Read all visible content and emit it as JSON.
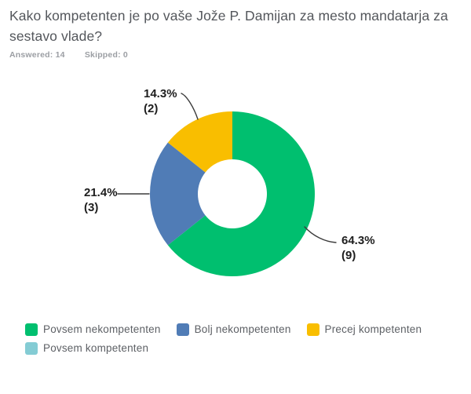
{
  "header": {
    "title": "Kako kompetenten je po vaše Jože P. Damijan za mesto mandatarja za sestavo vlade?",
    "answered_label": "Answered:",
    "answered_value": "14",
    "skipped_label": "Skipped:",
    "skipped_value": "0"
  },
  "chart_data": {
    "type": "pie",
    "subtype": "donut",
    "title": "Kako kompetenten je po vaše Jože P. Damijan za mesto mandatarja za sestavo vlade?",
    "categories": [
      "Povsem nekompetenten",
      "Bolj nekompetenten",
      "Precej kompetenten",
      "Povsem kompetenten"
    ],
    "values_pct": [
      64.3,
      21.4,
      14.3,
      0
    ],
    "counts": [
      9,
      3,
      2,
      0
    ],
    "total_responses": 14,
    "colors": [
      "#00BF6F",
      "#507CB6",
      "#F9BE00",
      "#84CCD4"
    ],
    "start_angle_deg": 0,
    "direction": "clockwise",
    "inner_radius_ratio": 0.42,
    "legend_position": "bottom",
    "data_labels": "percent_and_count"
  },
  "callouts": [
    {
      "slice": "Precej kompetenten",
      "pct": "14.3%",
      "count": "(2)"
    },
    {
      "slice": "Bolj nekompetenten",
      "pct": "21.4%",
      "count": "(3)"
    },
    {
      "slice": "Povsem nekompetenten",
      "pct": "64.3%",
      "count": "(9)"
    }
  ],
  "legend": {
    "items": [
      {
        "label": "Povsem nekompetenten",
        "color": "#00BF6F"
      },
      {
        "label": "Bolj nekompetenten",
        "color": "#507CB6"
      },
      {
        "label": "Precej kompetenten",
        "color": "#F9BE00"
      },
      {
        "label": "Povsem kompetenten",
        "color": "#84CCD4"
      }
    ]
  }
}
